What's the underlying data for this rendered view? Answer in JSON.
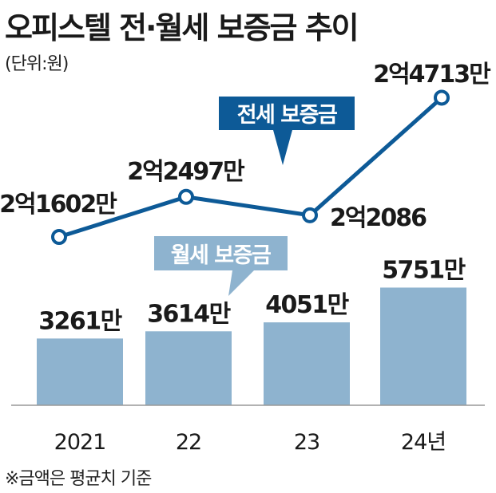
{
  "title": "오피스텔 전·월세 보증금 추이",
  "unit_note": "(단위:원)",
  "footnote": "※금액은 평균치 기준",
  "chart_data": {
    "type": "bar+line",
    "categories": [
      "2021",
      "22",
      "23",
      "24년"
    ],
    "bar_series": {
      "name": "월세 보증금",
      "values": [
        3261,
        3614,
        4051,
        5751
      ],
      "unit": "만원",
      "labels": [
        "3261만",
        "3614만",
        "4051만",
        "5751만"
      ],
      "color": "#8eb3cf"
    },
    "line_series": {
      "name": "전세 보증금",
      "values": [
        21602,
        22497,
        22086,
        24713
      ],
      "unit": "만원",
      "labels": [
        "2억1602만",
        "2억2497만",
        "2억2086",
        "2억4713만"
      ],
      "color": "#0d5a97"
    },
    "legend_style": "callout boxes"
  }
}
